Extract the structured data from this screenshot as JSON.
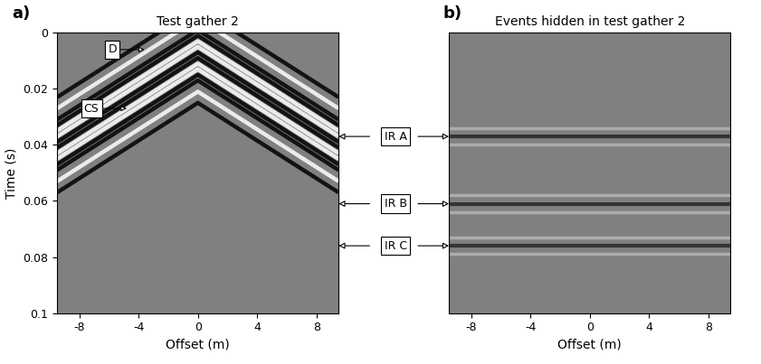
{
  "chart_data": [
    {
      "type": "image",
      "panel": "a)",
      "title": "Test gather 2",
      "x_label": "Offset (m)",
      "y_label": "Time (s)",
      "color": "#808080",
      "xlim": [
        -9.5,
        9.5
      ],
      "xticks": [
        -8,
        -4,
        0,
        4,
        8
      ],
      "ylim": [
        0.1,
        0
      ],
      "yticks": [
        0,
        0.02,
        0.04,
        0.06,
        0.08,
        0.1
      ],
      "x": [
        -9.5,
        0,
        9.5
      ],
      "series": [
        {
          "color": "#ffffff",
          "values": [
            0.035,
            0.003,
            0.035
          ]
        },
        {
          "color": "#ffffff",
          "values": [
            0.045,
            0.013,
            0.045
          ]
        }
      ],
      "annotations": [
        {
          "text": "D",
          "x": -3.6,
          "y": 0.006
        },
        {
          "text": "CS",
          "x": -4.8,
          "y": 0.027
        }
      ]
    },
    {
      "type": "image",
      "panel": "b)",
      "title": "Events hidden in test gather 2",
      "x_label": "Offset (m)",
      "color": "#808080",
      "xlim": [
        -9.5,
        9.5
      ],
      "xticks": [
        -8,
        -4,
        0,
        4,
        8
      ],
      "ylim": [
        0.1,
        0
      ],
      "tick_labels": "x",
      "x": [
        -9.5,
        9.5
      ],
      "series": [
        {
          "name": "IR A",
          "color": "#202020",
          "values": [
            0.037,
            0.037
          ]
        },
        {
          "name": "IR B",
          "color": "#202020",
          "values": [
            0.061,
            0.061
          ]
        },
        {
          "name": "IR C",
          "color": "#202020",
          "values": [
            0.076,
            0.076
          ]
        }
      ]
    }
  ]
}
